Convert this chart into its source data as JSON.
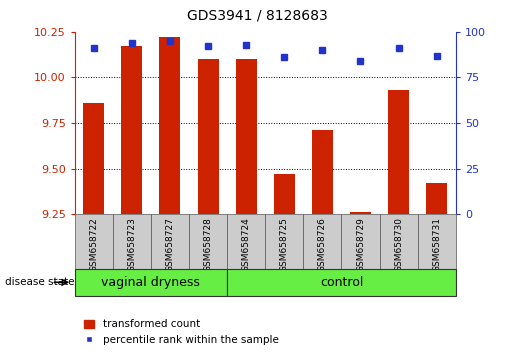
{
  "title": "GDS3941 / 8128683",
  "samples": [
    "GSM658722",
    "GSM658723",
    "GSM658727",
    "GSM658728",
    "GSM658724",
    "GSM658725",
    "GSM658726",
    "GSM658729",
    "GSM658730",
    "GSM658731"
  ],
  "red_values": [
    9.86,
    10.17,
    10.22,
    10.1,
    10.1,
    9.47,
    9.71,
    9.26,
    9.93,
    9.42
  ],
  "blue_values": [
    91,
    94,
    95,
    92,
    93,
    86,
    90,
    84,
    91,
    87
  ],
  "ylim_left": [
    9.25,
    10.25
  ],
  "ylim_right": [
    0,
    100
  ],
  "yticks_left": [
    9.25,
    9.5,
    9.75,
    10.0,
    10.25
  ],
  "yticks_right": [
    0,
    25,
    50,
    75,
    100
  ],
  "groups": [
    {
      "label": "vaginal dryness",
      "start": 0,
      "end": 4
    },
    {
      "label": "control",
      "start": 4,
      "end": 10
    }
  ],
  "disease_state_label": "disease state",
  "legend_red": "transformed count",
  "legend_blue": "percentile rank within the sample",
  "bar_color": "#cc2200",
  "dot_color": "#2233cc",
  "group_bg_color": "#66ee44",
  "sample_bg_color": "#cccccc",
  "grid_color": "#000000",
  "bar_bottom": 9.25,
  "figsize": [
    5.15,
    3.54
  ],
  "dpi": 100
}
